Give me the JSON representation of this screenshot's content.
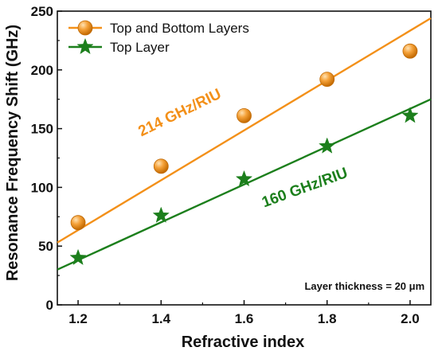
{
  "chart_data": {
    "type": "scatter",
    "xlabel": "Refractive index",
    "ylabel": "Resonance Frequency Shift (GHz)",
    "xlim": [
      1.15,
      2.05
    ],
    "ylim": [
      0,
      250
    ],
    "xticks": [
      1.2,
      1.4,
      1.6,
      1.8,
      2.0
    ],
    "xtick_labels": [
      "1.2",
      "1.4",
      "1.6",
      "1.8",
      "2.0"
    ],
    "yticks": [
      0,
      50,
      100,
      150,
      200,
      250
    ],
    "ytick_labels": [
      "0",
      "50",
      "100",
      "150",
      "200",
      "250"
    ],
    "grid": false,
    "legend_position": "top-left",
    "series": [
      {
        "name": "Top and Bottom Layers",
        "marker": "sphere",
        "color": "#f39019",
        "x": [
          1.2,
          1.4,
          1.6,
          1.8,
          2.0
        ],
        "y": [
          70,
          118,
          161,
          192,
          216
        ],
        "fit_line": [
          [
            1.15,
            53
          ],
          [
            2.05,
            244
          ]
        ]
      },
      {
        "name": "Top Layer",
        "marker": "star",
        "color": "#1c7f1c",
        "x": [
          1.2,
          1.4,
          1.6,
          1.8,
          2.0
        ],
        "y": [
          40,
          76,
          107,
          135,
          161
        ],
        "fit_line": [
          [
            1.15,
            30
          ],
          [
            2.05,
            175
          ]
        ]
      }
    ],
    "annotations": [
      {
        "text": "214 GHz/RIU",
        "x": 1.45,
        "y": 160,
        "color": "#f39019",
        "rotate": -26
      },
      {
        "text": "160 GHz/RIU",
        "x": 1.75,
        "y": 96,
        "color": "#1c7f1c",
        "rotate": -20
      },
      {
        "text": "Layer thickness = 20 μm",
        "x": 2.035,
        "y": 13,
        "color": "#111111",
        "rotate": 0
      }
    ]
  }
}
